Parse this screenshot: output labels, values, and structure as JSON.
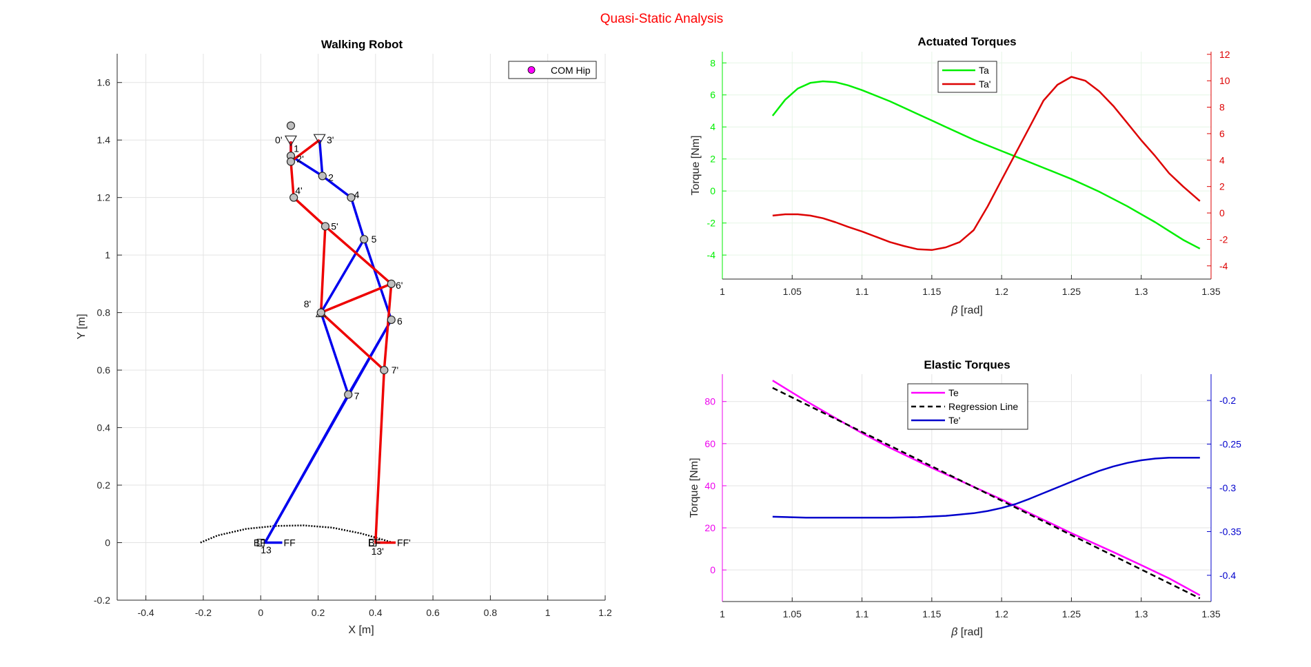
{
  "figure": {
    "title": "Quasi-Static Analysis",
    "title_color": "#ff0000"
  },
  "chart_data": [
    {
      "id": "robot",
      "type": "scatter",
      "title": "Walking Robot",
      "xlabel": "X [m]",
      "ylabel": "Y [m]",
      "xlim": [
        -0.5,
        1.2
      ],
      "ylim": [
        -0.2,
        1.7
      ],
      "xticks": [
        "-0.4",
        "-0.2",
        "0",
        "0.2",
        "0.4",
        "0.6",
        "0.8",
        "1",
        "1.2"
      ],
      "yticks": [
        "-0.2",
        "0",
        "0.2",
        "0.4",
        "0.6",
        "0.8",
        "1",
        "1.2",
        "1.4",
        "1.6"
      ],
      "grid": true,
      "legend": {
        "position": "top-right",
        "entries": [
          {
            "label": "COM Hip",
            "color": "#ff00ff"
          }
        ]
      },
      "colors": {
        "blue_leg": "#0000ee",
        "red_leg": "#ee0000",
        "joint_fill": "#bfbfbf"
      },
      "com_hip": [
        0.105,
        1.45
      ],
      "ground_arc": [
        [
          -0.21,
          0
        ],
        [
          -0.15,
          0.025
        ],
        [
          -0.05,
          0.048
        ],
        [
          0.05,
          0.058
        ],
        [
          0.15,
          0.06
        ],
        [
          0.25,
          0.052
        ],
        [
          0.35,
          0.032
        ],
        [
          0.42,
          0.012
        ],
        [
          0.46,
          0
        ]
      ],
      "blue_links": [
        [
          [
            0.105,
            1.395
          ],
          [
            0.105,
            1.345
          ],
          [
            0.215,
            1.275
          ],
          [
            0.315,
            1.2
          ],
          [
            0.36,
            1.055
          ],
          [
            0.21,
            0.8
          ],
          [
            0.305,
            0.515
          ],
          [
            0.015,
            0.0
          ],
          [
            0.075,
            0.0
          ]
        ],
        [
          [
            0.205,
            1.4
          ],
          [
            0.215,
            1.275
          ]
        ],
        [
          [
            0.36,
            1.055
          ],
          [
            0.455,
            0.775
          ],
          [
            0.305,
            0.515
          ]
        ],
        [
          [
            0.455,
            0.775
          ],
          [
            0.015,
            0.0
          ]
        ]
      ],
      "red_links": [
        [
          [
            0.105,
            1.395
          ],
          [
            0.105,
            1.325
          ],
          [
            0.115,
            1.2
          ],
          [
            0.225,
            1.1
          ],
          [
            0.21,
            0.8
          ],
          [
            0.43,
            0.6
          ],
          [
            0.455,
            0.9
          ],
          [
            0.225,
            1.1
          ]
        ],
        [
          [
            0.105,
            1.325
          ],
          [
            0.205,
            1.4
          ]
        ],
        [
          [
            0.21,
            0.8
          ],
          [
            0.455,
            0.9
          ]
        ],
        [
          [
            0.43,
            0.6
          ],
          [
            0.4,
            0.0
          ],
          [
            0.47,
            0.0
          ]
        ]
      ],
      "joints": [
        [
          0.105,
          1.45
        ],
        [
          0.105,
          1.345
        ],
        [
          0.105,
          1.325
        ],
        [
          0.215,
          1.275
        ],
        [
          0.315,
          1.2
        ],
        [
          0.115,
          1.2
        ],
        [
          0.225,
          1.1
        ],
        [
          0.36,
          1.055
        ],
        [
          0.455,
          0.9
        ],
        [
          0.455,
          0.775
        ],
        [
          0.43,
          0.6
        ],
        [
          0.305,
          0.515
        ],
        [
          0.21,
          0.8
        ]
      ],
      "triangles_down": [
        [
          0.105,
          1.395
        ],
        [
          0.205,
          1.4
        ]
      ],
      "triangles_up": [
        [
          0.21,
          0.8
        ]
      ],
      "feet_markers": [
        [
          0.0,
          0.0
        ],
        [
          0.39,
          0.0
        ]
      ],
      "labels": [
        {
          "text": "0'",
          "x": 0.05,
          "y": 1.4
        },
        {
          "text": "1",
          "x": 0.115,
          "y": 1.37
        },
        {
          "text": "3'",
          "x": 0.23,
          "y": 1.4
        },
        {
          "text": "2'",
          "x": 0.125,
          "y": 1.335
        },
        {
          "text": "2",
          "x": 0.235,
          "y": 1.27
        },
        {
          "text": "4",
          "x": 0.325,
          "y": 1.21
        },
        {
          "text": "4'",
          "x": 0.12,
          "y": 1.225
        },
        {
          "text": "5'",
          "x": 0.245,
          "y": 1.1
        },
        {
          "text": "5",
          "x": 0.385,
          "y": 1.055
        },
        {
          "text": "6'",
          "x": 0.47,
          "y": 0.895
        },
        {
          "text": "8'",
          "x": 0.15,
          "y": 0.83
        },
        {
          "text": "6",
          "x": 0.475,
          "y": 0.77
        },
        {
          "text": "7'",
          "x": 0.455,
          "y": 0.6
        },
        {
          "text": "7",
          "x": 0.325,
          "y": 0.51
        },
        {
          "text": "BF",
          "x": -0.025,
          "y": 0.0
        },
        {
          "text": "FF",
          "x": 0.08,
          "y": 0.0
        },
        {
          "text": "13",
          "x": 0.0,
          "y": -0.025
        },
        {
          "text": "BF",
          "x": 0.375,
          "y": 0.0
        },
        {
          "text": "FF'",
          "x": 0.475,
          "y": 0.0
        },
        {
          "text": "13'",
          "x": 0.385,
          "y": -0.03
        }
      ]
    },
    {
      "id": "actuated",
      "type": "line",
      "title": "Actuated Torques",
      "xlabel_prefix": "β",
      "xlabel_suffix": " [rad]",
      "ylabel": "Torque [Nm]",
      "xlim": [
        1,
        1.35
      ],
      "ylim_left": [
        -5.5,
        8.7
      ],
      "ylim_right": [
        -5.0,
        12.2
      ],
      "xticks": [
        "1",
        "1.05",
        "1.1",
        "1.15",
        "1.2",
        "1.25",
        "1.3",
        "1.35"
      ],
      "yticks_left": [
        "-4",
        "-2",
        "0",
        "2",
        "4",
        "6",
        "8"
      ],
      "yticks_right": [
        "-4",
        "-2",
        "0",
        "2",
        "4",
        "6",
        "8",
        "10",
        "12"
      ],
      "left_color": "#00ee00",
      "right_color": "#dd0000",
      "grid": true,
      "legend": {
        "position": "top-center"
      },
      "series": [
        {
          "name": "Ta",
          "axis": "left",
          "color": "#00ee00",
          "x": [
            1.036,
            1.045,
            1.054,
            1.063,
            1.072,
            1.081,
            1.09,
            1.1,
            1.11,
            1.12,
            1.13,
            1.14,
            1.15,
            1.16,
            1.17,
            1.18,
            1.19,
            1.2,
            1.21,
            1.22,
            1.23,
            1.24,
            1.25,
            1.26,
            1.27,
            1.28,
            1.29,
            1.3,
            1.31,
            1.32,
            1.33,
            1.342
          ],
          "values": [
            4.7,
            5.7,
            6.4,
            6.75,
            6.85,
            6.8,
            6.6,
            6.3,
            5.95,
            5.6,
            5.2,
            4.8,
            4.4,
            4.0,
            3.6,
            3.2,
            2.85,
            2.5,
            2.15,
            1.8,
            1.45,
            1.1,
            0.75,
            0.35,
            -0.05,
            -0.5,
            -0.95,
            -1.45,
            -1.95,
            -2.5,
            -3.05,
            -3.6
          ]
        },
        {
          "name": "Ta'",
          "axis": "right",
          "color": "#dd0000",
          "x": [
            1.036,
            1.045,
            1.054,
            1.063,
            1.072,
            1.081,
            1.09,
            1.1,
            1.11,
            1.12,
            1.13,
            1.14,
            1.15,
            1.16,
            1.17,
            1.18,
            1.19,
            1.2,
            1.21,
            1.22,
            1.23,
            1.24,
            1.25,
            1.26,
            1.27,
            1.28,
            1.29,
            1.3,
            1.31,
            1.32,
            1.33,
            1.342
          ],
          "values": [
            -0.2,
            -0.1,
            -0.1,
            -0.2,
            -0.4,
            -0.7,
            -1.05,
            -1.4,
            -1.8,
            -2.2,
            -2.5,
            -2.75,
            -2.8,
            -2.6,
            -2.2,
            -1.3,
            0.5,
            2.5,
            4.5,
            6.5,
            8.5,
            9.7,
            10.3,
            10.0,
            9.2,
            8.1,
            6.8,
            5.5,
            4.3,
            3.0,
            2.0,
            0.9
          ]
        }
      ]
    },
    {
      "id": "elastic",
      "type": "line",
      "title": "Elastic Torques",
      "xlabel_prefix": "β",
      "xlabel_suffix": " [rad]",
      "ylabel": "Torque [Nm]",
      "xlim": [
        1,
        1.35
      ],
      "ylim_left": [
        -15,
        93
      ],
      "ylim_right": [
        -0.43,
        -0.17
      ],
      "xticks": [
        "1",
        "1.05",
        "1.1",
        "1.15",
        "1.2",
        "1.25",
        "1.3",
        "1.35"
      ],
      "yticks_left": [
        "0",
        "20",
        "40",
        "60",
        "80"
      ],
      "yticks_right": [
        "-0.4",
        "-0.35",
        "-0.3",
        "-0.25",
        "-0.2"
      ],
      "left_color": "#ee00ee",
      "right_color": "#0000cc",
      "grid": true,
      "legend": {
        "position": "top-center"
      },
      "series": [
        {
          "name": "Te",
          "axis": "left",
          "color": "#ff00ff",
          "style": "solid",
          "x": [
            1.036,
            1.06,
            1.08,
            1.1,
            1.12,
            1.15,
            1.18,
            1.2,
            1.22,
            1.25,
            1.28,
            1.3,
            1.32,
            1.342
          ],
          "values": [
            90,
            80.2,
            72.5,
            65,
            58,
            48.5,
            39.5,
            33.5,
            27,
            17.5,
            8.5,
            2.3,
            -4,
            -12
          ]
        },
        {
          "name": "Regression Line",
          "axis": "left",
          "color": "#000000",
          "style": "dashed",
          "x": [
            1.036,
            1.342
          ],
          "values": [
            86.5,
            -13.5
          ]
        },
        {
          "name": "Te'",
          "axis": "right",
          "color": "#0000cc",
          "style": "solid",
          "x": [
            1.036,
            1.06,
            1.08,
            1.1,
            1.12,
            1.14,
            1.16,
            1.17,
            1.18,
            1.19,
            1.2,
            1.21,
            1.22,
            1.23,
            1.24,
            1.25,
            1.26,
            1.27,
            1.28,
            1.29,
            1.3,
            1.31,
            1.32,
            1.342
          ],
          "values": [
            -0.333,
            -0.334,
            -0.334,
            -0.334,
            -0.334,
            -0.3335,
            -0.332,
            -0.3305,
            -0.329,
            -0.3265,
            -0.323,
            -0.3185,
            -0.3125,
            -0.306,
            -0.2995,
            -0.293,
            -0.2865,
            -0.2805,
            -0.2755,
            -0.2715,
            -0.2685,
            -0.2665,
            -0.2655,
            -0.2655
          ]
        }
      ]
    }
  ]
}
